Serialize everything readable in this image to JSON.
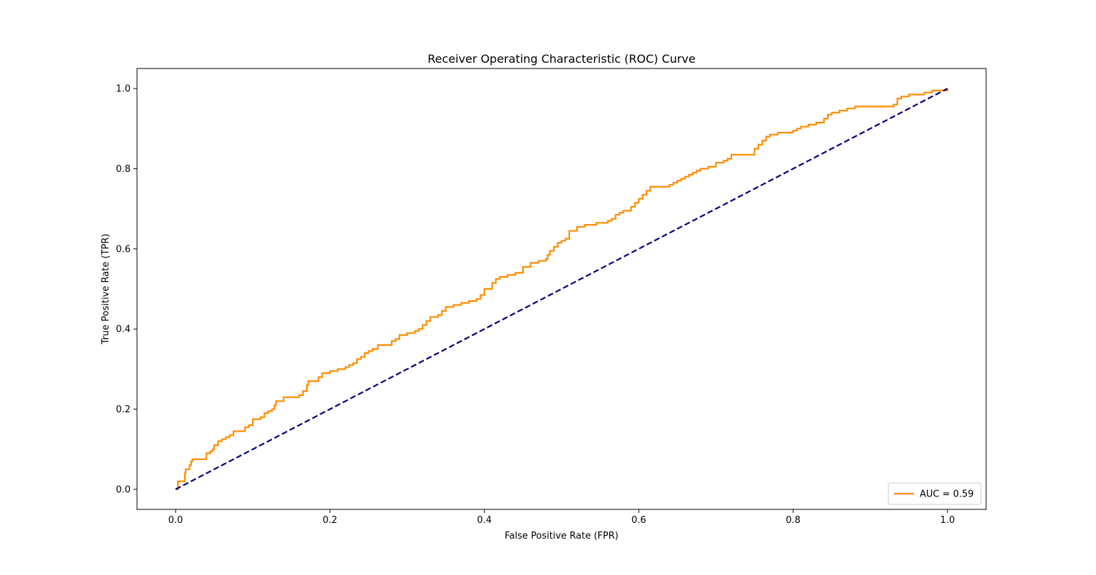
{
  "chart_data": {
    "type": "line",
    "title": "Receiver Operating Characteristic (ROC) Curve",
    "xlabel": "False Positive Rate (FPR)",
    "ylabel": "True Positive Rate (TPR)",
    "xlim": [
      -0.05,
      1.05
    ],
    "ylim": [
      -0.05,
      1.05
    ],
    "xticks": [
      "0.0",
      "0.2",
      "0.4",
      "0.6",
      "0.8",
      "1.0"
    ],
    "yticks": [
      "0.0",
      "0.2",
      "0.4",
      "0.6",
      "0.8",
      "1.0"
    ],
    "grid": false,
    "legend_position": "lower-right",
    "series": [
      {
        "name": "AUC = 0.59",
        "color": "#ff8c00",
        "line_style": "solid",
        "step": true,
        "x": [
          0.0,
          0.003,
          0.005,
          0.012,
          0.013,
          0.015,
          0.018,
          0.02,
          0.022,
          0.025,
          0.03,
          0.04,
          0.045,
          0.048,
          0.05,
          0.055,
          0.06,
          0.065,
          0.07,
          0.075,
          0.08,
          0.09,
          0.095,
          0.1,
          0.11,
          0.115,
          0.12,
          0.125,
          0.128,
          0.13,
          0.14,
          0.145,
          0.15,
          0.16,
          0.165,
          0.17,
          0.172,
          0.175,
          0.185,
          0.19,
          0.2,
          0.21,
          0.22,
          0.225,
          0.23,
          0.235,
          0.24,
          0.245,
          0.25,
          0.255,
          0.26,
          0.262,
          0.265,
          0.28,
          0.285,
          0.29,
          0.3,
          0.31,
          0.315,
          0.32,
          0.325,
          0.33,
          0.34,
          0.345,
          0.35,
          0.36,
          0.37,
          0.375,
          0.38,
          0.39,
          0.395,
          0.4,
          0.41,
          0.415,
          0.42,
          0.43,
          0.435,
          0.44,
          0.45,
          0.46,
          0.47,
          0.48,
          0.482,
          0.485,
          0.49,
          0.495,
          0.5,
          0.505,
          0.51,
          0.52,
          0.53,
          0.545,
          0.56,
          0.565,
          0.57,
          0.575,
          0.58,
          0.59,
          0.595,
          0.6,
          0.605,
          0.61,
          0.615,
          0.64,
          0.645,
          0.65,
          0.655,
          0.66,
          0.665,
          0.67,
          0.675,
          0.68,
          0.69,
          0.7,
          0.71,
          0.715,
          0.72,
          0.75,
          0.755,
          0.76,
          0.765,
          0.77,
          0.78,
          0.8,
          0.805,
          0.81,
          0.82,
          0.83,
          0.84,
          0.845,
          0.85,
          0.86,
          0.87,
          0.88,
          0.93,
          0.935,
          0.94,
          0.95,
          0.97,
          0.98,
          1.0
        ],
        "y": [
          0.0,
          0.02,
          0.02,
          0.04,
          0.05,
          0.05,
          0.06,
          0.07,
          0.075,
          0.075,
          0.075,
          0.09,
          0.095,
          0.1,
          0.11,
          0.12,
          0.125,
          0.13,
          0.135,
          0.145,
          0.145,
          0.155,
          0.16,
          0.175,
          0.18,
          0.19,
          0.195,
          0.2,
          0.21,
          0.22,
          0.23,
          0.23,
          0.23,
          0.235,
          0.245,
          0.26,
          0.27,
          0.27,
          0.28,
          0.29,
          0.295,
          0.3,
          0.305,
          0.31,
          0.315,
          0.325,
          0.33,
          0.34,
          0.345,
          0.35,
          0.35,
          0.36,
          0.36,
          0.37,
          0.375,
          0.385,
          0.39,
          0.395,
          0.4,
          0.41,
          0.42,
          0.43,
          0.435,
          0.445,
          0.455,
          0.46,
          0.465,
          0.465,
          0.47,
          0.475,
          0.485,
          0.5,
          0.515,
          0.525,
          0.53,
          0.535,
          0.535,
          0.54,
          0.555,
          0.565,
          0.57,
          0.575,
          0.585,
          0.595,
          0.605,
          0.615,
          0.62,
          0.625,
          0.645,
          0.655,
          0.66,
          0.665,
          0.67,
          0.675,
          0.685,
          0.69,
          0.695,
          0.705,
          0.715,
          0.725,
          0.735,
          0.745,
          0.755,
          0.76,
          0.765,
          0.77,
          0.775,
          0.78,
          0.785,
          0.79,
          0.795,
          0.8,
          0.805,
          0.815,
          0.82,
          0.825,
          0.835,
          0.85,
          0.86,
          0.87,
          0.88,
          0.885,
          0.89,
          0.895,
          0.9,
          0.905,
          0.91,
          0.915,
          0.925,
          0.935,
          0.94,
          0.945,
          0.95,
          0.955,
          0.96,
          0.975,
          0.98,
          0.985,
          0.99,
          0.995,
          1.0
        ]
      },
      {
        "name": "",
        "color": "#000080",
        "line_style": "dashed",
        "step": false,
        "x": [
          0.0,
          1.0
        ],
        "y": [
          0.0,
          1.0
        ]
      }
    ]
  }
}
